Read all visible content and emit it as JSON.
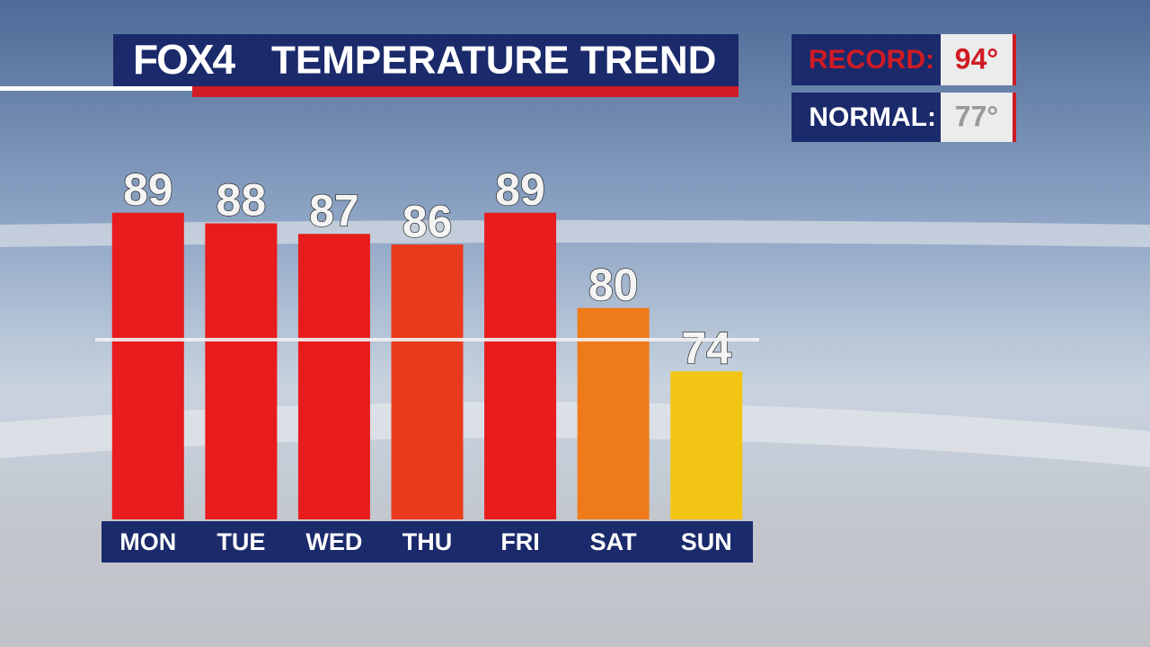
{
  "chart_data": {
    "type": "bar",
    "logo": "FOX4",
    "title": "TEMPERATURE TREND",
    "categories": [
      "MON",
      "TUE",
      "WED",
      "THU",
      "FRI",
      "SAT",
      "SUN"
    ],
    "values": [
      89,
      88,
      87,
      86,
      89,
      80,
      74
    ],
    "colors": [
      "#e81c1c",
      "#e81c1c",
      "#e81c1c",
      "#ea3a1d",
      "#e81c1c",
      "#ee7a1a",
      "#f2c515"
    ],
    "ylim": [
      60,
      90
    ],
    "record": {
      "label": "RECORD:",
      "value": 94,
      "value_label": "94°"
    },
    "normal": {
      "label": "NORMAL:",
      "value": 77,
      "value_label": "77°"
    }
  }
}
